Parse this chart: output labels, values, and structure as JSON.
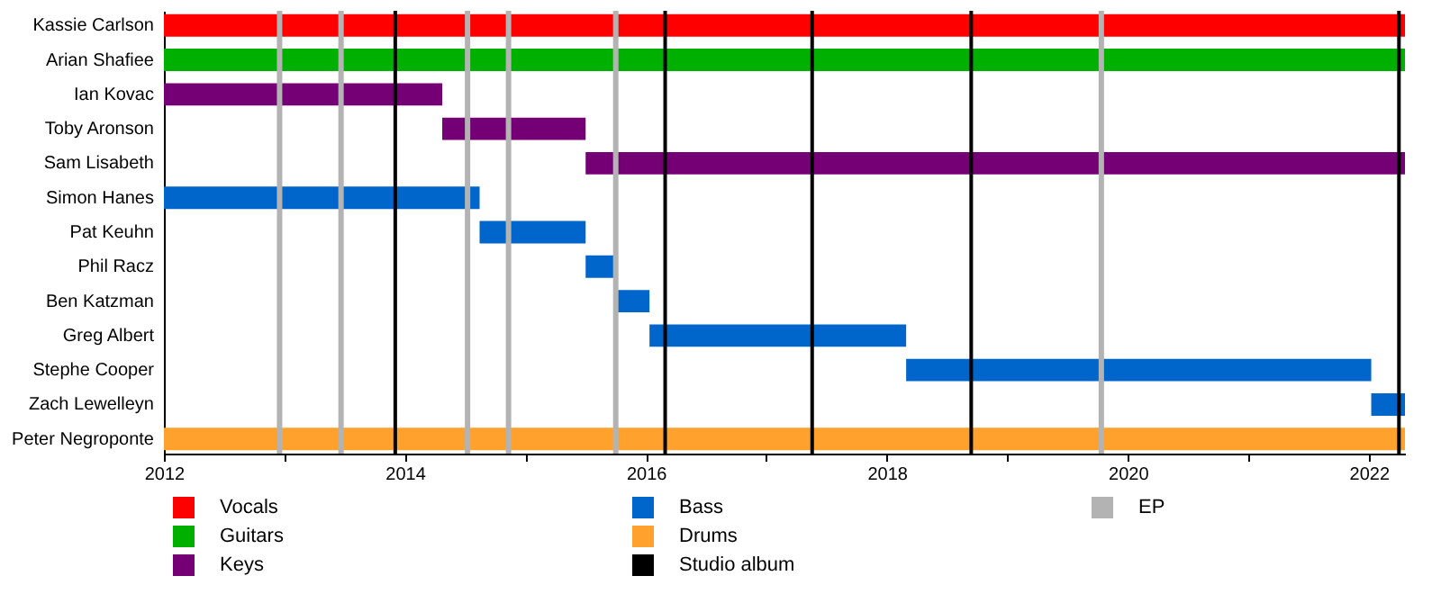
{
  "chart_data": {
    "type": "bar",
    "orientation": "horizontal",
    "legend": "bottom",
    "categories": [
      "Kassie Carlson",
      "Arian Shafiee",
      "Ian Kovac",
      "Toby Aronson",
      "Sam Lisabeth",
      "Simon Hanes",
      "Pat Keuhn",
      "Phil Racz",
      "Ben Katzman",
      "Greg Albert",
      "Stephe Cooper",
      "Zach Lewelleyn",
      "Peter Negroponte"
    ],
    "series": [
      {
        "name": "Vocals",
        "color": "#ff0000",
        "base": [
          2012,
          null,
          null,
          null,
          null,
          null,
          null,
          null,
          null,
          null,
          null,
          null,
          null
        ],
        "values": [
          10.3,
          null,
          null,
          null,
          null,
          null,
          null,
          null,
          null,
          null,
          null,
          null,
          null
        ]
      },
      {
        "name": "Guitars",
        "color": "#00b000",
        "base": [
          null,
          2012,
          null,
          null,
          null,
          null,
          null,
          null,
          null,
          null,
          null,
          null,
          null
        ],
        "values": [
          null,
          10.3,
          null,
          null,
          null,
          null,
          null,
          null,
          null,
          null,
          null,
          null,
          null
        ]
      },
      {
        "name": "Keys",
        "color": "#750075",
        "base": [
          null,
          null,
          2012,
          2014.31,
          2015.5,
          null,
          null,
          null,
          null,
          null,
          null,
          null,
          null
        ],
        "values": [
          null,
          null,
          2.31,
          1.19,
          6.8,
          null,
          null,
          null,
          null,
          null,
          null,
          null,
          null
        ]
      },
      {
        "name": "Bass",
        "color": "#0066cc",
        "base": [
          null,
          null,
          null,
          null,
          null,
          2012,
          2014.62,
          2015.5,
          2015.76,
          2016.03,
          2018.16,
          2022.02,
          null
        ],
        "values": [
          null,
          null,
          null,
          null,
          null,
          2.62,
          0.88,
          0.26,
          0.27,
          2.13,
          3.86,
          0.28,
          null
        ]
      },
      {
        "name": "Drums",
        "color": "#ffa12d",
        "base": [
          null,
          null,
          null,
          null,
          null,
          null,
          null,
          null,
          null,
          null,
          null,
          null,
          2012
        ],
        "values": [
          null,
          null,
          null,
          null,
          null,
          null,
          null,
          null,
          null,
          null,
          null,
          null,
          10.3
        ]
      }
    ],
    "xlim": [
      2012,
      2022.3
    ],
    "xticks": [
      2012,
      {
        "value": 2013,
        "label": null
      },
      2014,
      {
        "value": 2015,
        "label": null
      },
      2016,
      {
        "value": 2017,
        "label": null
      },
      2018,
      {
        "value": 2019,
        "label": null
      },
      2020,
      {
        "value": 2021,
        "label": null
      },
      2022
    ],
    "ref_lines": [
      {
        "axis": "x",
        "value": 2013.92,
        "label": "Studio album",
        "color": "#000000"
      },
      {
        "axis": "x",
        "value": 2016.16,
        "color": "#000000"
      },
      {
        "axis": "x",
        "value": 2017.38,
        "color": "#000000"
      },
      {
        "axis": "x",
        "value": 2018.7,
        "color": "#000000"
      },
      {
        "axis": "x",
        "value": 2022.25,
        "color": "#000000"
      },
      {
        "axis": "x",
        "value": 2012.96,
        "label": "EP",
        "color": "#b3b3b3"
      },
      {
        "axis": "x",
        "value": 2013.47,
        "color": "#b3b3b3"
      },
      {
        "axis": "x",
        "value": 2014.52,
        "color": "#b3b3b3"
      },
      {
        "axis": "x",
        "value": 2014.86,
        "color": "#b3b3b3"
      },
      {
        "axis": "x",
        "value": 2015.75,
        "color": "#b3b3b3"
      },
      {
        "axis": "x",
        "value": 2019.78,
        "color": "#b3b3b3"
      }
    ]
  }
}
